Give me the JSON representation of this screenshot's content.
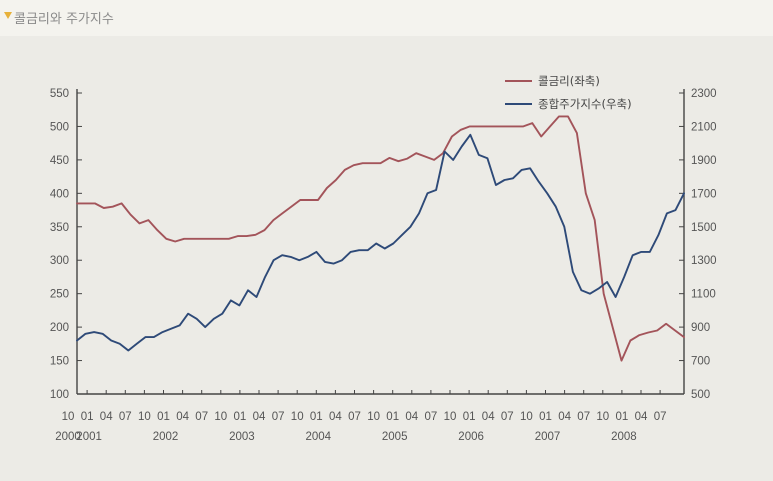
{
  "header": {
    "title": "콜금리와 주가지수"
  },
  "colors": {
    "call_rate": "#a3545a",
    "kospi": "#2e4a78",
    "axis": "#444444",
    "background": "#ecebe6"
  },
  "chart_data": {
    "type": "line",
    "title": "콜금리와 주가지수",
    "xlabel": "",
    "ylabel": "",
    "left_axis": {
      "min": 100,
      "max": 550,
      "ticks": [
        "100",
        "150",
        "200",
        "250",
        "300",
        "350",
        "400",
        "450",
        "500",
        "550"
      ]
    },
    "right_axis": {
      "min": 500,
      "max": 2300,
      "ticks": [
        "500",
        "700",
        "900",
        "1100",
        "1300",
        "1500",
        "1700",
        "1900",
        "2100",
        "2300"
      ]
    },
    "x_labels": {
      "months": [
        "10",
        "01",
        "04",
        "07",
        "10",
        "01",
        "04",
        "07",
        "10",
        "01",
        "04",
        "07",
        "10",
        "01",
        "04",
        "07",
        "10",
        "01",
        "04",
        "07",
        "10",
        "01",
        "04",
        "07",
        "10",
        "01",
        "04",
        "07",
        "10",
        "01",
        "04",
        "07"
      ],
      "years": [
        {
          "label": "2000",
          "index": 0
        },
        {
          "label": "2001",
          "index": 1
        },
        {
          "label": "2002",
          "index": 5
        },
        {
          "label": "2003",
          "index": 9
        },
        {
          "label": "2004",
          "index": 13
        },
        {
          "label": "2005",
          "index": 17
        },
        {
          "label": "2006",
          "index": 21
        },
        {
          "label": "2007",
          "index": 25
        },
        {
          "label": "2008",
          "index": 29
        }
      ]
    },
    "legend": {
      "position": "top-right"
    },
    "grid": false,
    "series": [
      {
        "name": "콜금리(좌축)",
        "axis": "left",
        "values": [
          385,
          385,
          385,
          378,
          380,
          385,
          368,
          355,
          360,
          345,
          332,
          328,
          332,
          332,
          332,
          332,
          332,
          332,
          336,
          336,
          338,
          345,
          360,
          370,
          380,
          390,
          390,
          390,
          408,
          420,
          435,
          442,
          445,
          445,
          445,
          453,
          448,
          452,
          460,
          455,
          450,
          460,
          485,
          495,
          500,
          500,
          500,
          500,
          500,
          500,
          500,
          505,
          485,
          500,
          515,
          515,
          490,
          400,
          360,
          250,
          200,
          150,
          180,
          188,
          192,
          195,
          205,
          195,
          185
        ]
      },
      {
        "name": "종합주가지수(우축)",
        "axis": "right",
        "values": [
          820,
          860,
          870,
          860,
          820,
          800,
          760,
          800,
          840,
          840,
          870,
          890,
          910,
          980,
          950,
          900,
          950,
          980,
          1060,
          1030,
          1120,
          1080,
          1200,
          1300,
          1330,
          1320,
          1300,
          1320,
          1350,
          1290,
          1280,
          1300,
          1350,
          1360,
          1360,
          1400,
          1370,
          1400,
          1450,
          1500,
          1580,
          1700,
          1720,
          1950,
          1900,
          1980,
          2050,
          1930,
          1910,
          1750,
          1780,
          1790,
          1840,
          1850,
          1770,
          1700,
          1620,
          1500,
          1230,
          1120,
          1100,
          1130,
          1170,
          1080,
          1200,
          1330,
          1350,
          1350,
          1450,
          1580,
          1600,
          1700
        ]
      }
    ]
  }
}
